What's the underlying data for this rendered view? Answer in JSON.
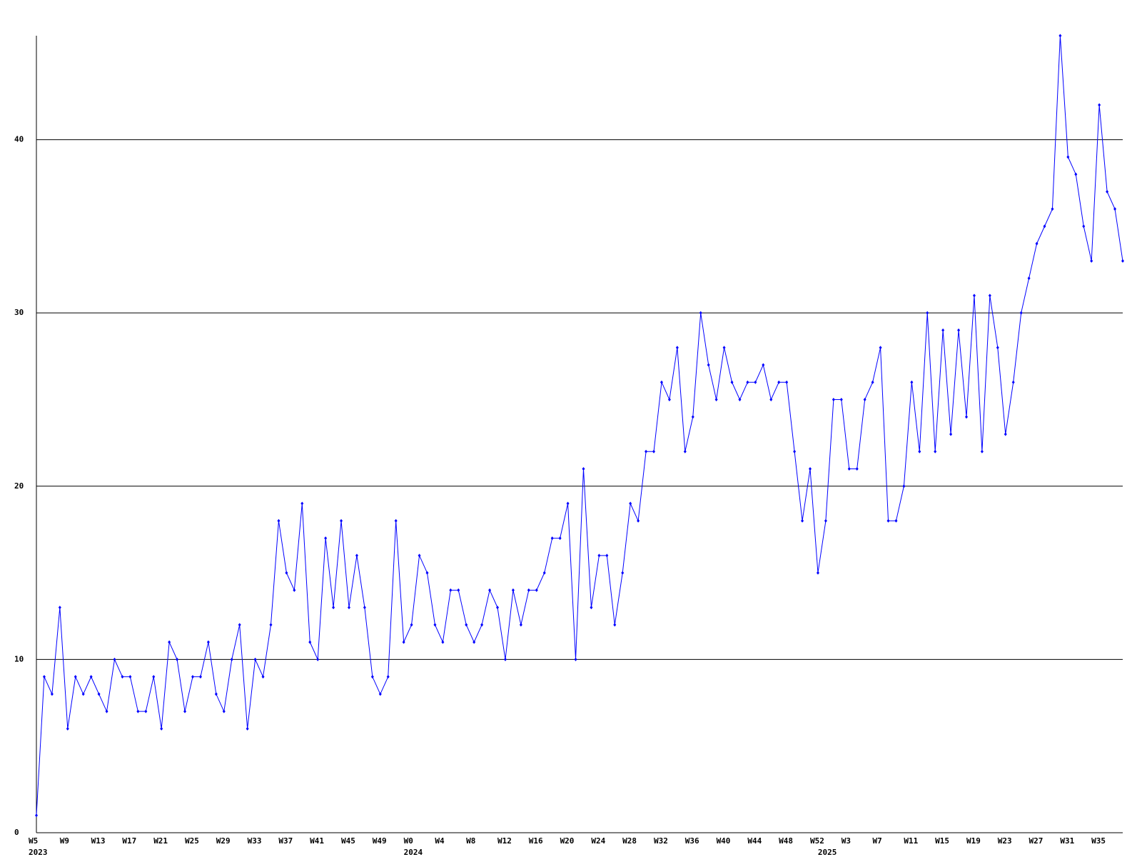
{
  "chart_data": {
    "type": "line",
    "categories": [
      "W5",
      null,
      null,
      null,
      "W9",
      null,
      null,
      null,
      "W13",
      null,
      null,
      null,
      "W17",
      null,
      null,
      null,
      "W21",
      null,
      null,
      null,
      "W25",
      null,
      null,
      null,
      "W29",
      null,
      null,
      null,
      "W33",
      null,
      null,
      null,
      "W37",
      null,
      null,
      null,
      "W41",
      null,
      null,
      null,
      "W45",
      null,
      null,
      null,
      "W49",
      null,
      null,
      null,
      "W0",
      null,
      null,
      null,
      "W4",
      null,
      null,
      null,
      "W8",
      null,
      null,
      null,
      "W12",
      null,
      null,
      null,
      "W16",
      null,
      null,
      null,
      "W20",
      null,
      null,
      null,
      "W24",
      null,
      null,
      null,
      "W28",
      null,
      null,
      null,
      "W32",
      null,
      null,
      null,
      "W36",
      null,
      null,
      null,
      "W40",
      null,
      null,
      null,
      "W44",
      null,
      null,
      null,
      "W48",
      null,
      null,
      null,
      "W52",
      null,
      null,
      null,
      "W3",
      null,
      null,
      null,
      "W7",
      null,
      null,
      null,
      "W11",
      null,
      null,
      null,
      "W15",
      null,
      null,
      null,
      "W19",
      null,
      null,
      null,
      "W23",
      null,
      null,
      null,
      "W27",
      null,
      null,
      null,
      "W31",
      null,
      null,
      null,
      "W35",
      null,
      null,
      null
    ],
    "x_groups": [
      {
        "label": "2023",
        "start": 0
      },
      {
        "label": "2024",
        "start": 48
      },
      {
        "label": "2025",
        "start": 101
      }
    ],
    "series": [
      {
        "color": "#0000ff",
        "values": [
          1,
          9,
          8,
          13,
          6,
          9,
          8,
          9,
          8,
          7,
          10,
          9,
          9,
          7,
          7,
          9,
          6,
          11,
          10,
          7,
          9,
          9,
          11,
          8,
          7,
          10,
          12,
          6,
          10,
          9,
          12,
          18,
          15,
          14,
          19,
          11,
          10,
          17,
          13,
          18,
          13,
          16,
          13,
          9,
          8,
          9,
          18,
          11,
          12,
          16,
          15,
          12,
          11,
          14,
          14,
          12,
          11,
          12,
          14,
          13,
          10,
          14,
          12,
          14,
          14,
          15,
          17,
          17,
          19,
          10,
          21,
          13,
          16,
          16,
          12,
          15,
          19,
          18,
          22,
          22,
          26,
          25,
          28,
          22,
          24,
          30,
          27,
          25,
          28,
          26,
          25,
          26,
          26,
          27,
          25,
          26,
          26,
          22,
          18,
          21,
          15,
          18,
          25,
          25,
          21,
          21,
          25,
          26,
          28,
          18,
          18,
          20,
          26,
          22,
          30,
          22,
          29,
          23,
          29,
          24,
          31,
          22,
          31,
          28,
          23,
          26,
          30,
          32,
          34,
          35,
          36,
          46,
          39,
          38,
          35,
          33,
          42,
          37,
          36,
          33
        ]
      }
    ],
    "ylim": [
      0,
      46
    ],
    "yticks": [
      0,
      10,
      20,
      30,
      40
    ],
    "grid": true
  }
}
